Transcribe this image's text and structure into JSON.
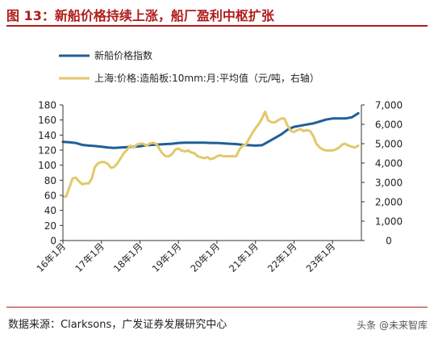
{
  "figure": {
    "title": "图 13：新船价格持续上涨，船厂盈利中枢扩张",
    "source": "数据来源：Clarksons，广发证券发展研究中心",
    "watermark": "头条 @未来智库"
  },
  "chart_data": {
    "type": "line",
    "title": "",
    "xlabel": "",
    "x_tick_labels": [
      "16年1月",
      "17年1月",
      "18年1月",
      "19年1月",
      "20年1月",
      "21年1月",
      "22年1月",
      "23年1月"
    ],
    "x_range": [
      2016.0,
      2023.75
    ],
    "left_axis": {
      "range": [
        0,
        180
      ],
      "ticks": [
        0,
        20,
        40,
        60,
        80,
        100,
        120,
        140,
        160,
        180
      ],
      "tick_labels": [
        "0",
        "20",
        "40",
        "60",
        "80",
        "100",
        "120",
        "140",
        "160",
        "180"
      ]
    },
    "right_axis": {
      "range": [
        0,
        7000
      ],
      "ticks": [
        0,
        1000,
        2000,
        3000,
        4000,
        5000,
        6000,
        7000
      ],
      "tick_labels": [
        "0",
        "1,000",
        "2,000",
        "3,000",
        "4,000",
        "5,000",
        "6,000",
        "7,000"
      ]
    },
    "grid": false,
    "legend_position": "top-left",
    "series": [
      {
        "name": "新船价格指数",
        "axis": "left",
        "color": "#1f5f99",
        "x": [
          2016.0,
          2016.17,
          2016.33,
          2016.5,
          2016.67,
          2016.83,
          2017.0,
          2017.17,
          2017.33,
          2017.5,
          2017.67,
          2017.83,
          2018.0,
          2018.17,
          2018.33,
          2018.5,
          2018.67,
          2018.83,
          2019.0,
          2019.17,
          2019.33,
          2019.5,
          2019.67,
          2019.83,
          2020.0,
          2020.17,
          2020.33,
          2020.5,
          2020.67,
          2020.83,
          2021.0,
          2021.17,
          2021.33,
          2021.5,
          2021.67,
          2021.83,
          2022.0,
          2022.17,
          2022.33,
          2022.5,
          2022.67,
          2022.83,
          2023.0,
          2023.17,
          2023.33,
          2023.5,
          2023.67
        ],
        "y": [
          131,
          130.5,
          129.5,
          127,
          126,
          125.5,
          124.5,
          123.5,
          123,
          123.5,
          124,
          124.5,
          125,
          126.5,
          127,
          127.5,
          128,
          128.5,
          129.5,
          130,
          130,
          130,
          130,
          129.5,
          129.5,
          129,
          128.5,
          128,
          127,
          126.5,
          126,
          126.5,
          131,
          136,
          141,
          147,
          151,
          152.5,
          154,
          155.5,
          158,
          160.5,
          162,
          162,
          162,
          163.5,
          169
        ]
      },
      {
        "name": "上海:价格:造船板:10mm:月:平均值（元/吨，右轴）",
        "axis": "right",
        "color": "#e3c86a",
        "x": [
          2016.0,
          2016.08,
          2016.17,
          2016.25,
          2016.33,
          2016.42,
          2016.5,
          2016.58,
          2016.67,
          2016.75,
          2016.83,
          2016.92,
          2017.0,
          2017.08,
          2017.17,
          2017.25,
          2017.33,
          2017.42,
          2017.5,
          2017.58,
          2017.67,
          2017.75,
          2017.83,
          2017.92,
          2018.0,
          2018.08,
          2018.17,
          2018.25,
          2018.33,
          2018.42,
          2018.5,
          2018.58,
          2018.67,
          2018.75,
          2018.83,
          2018.92,
          2019.0,
          2019.08,
          2019.17,
          2019.25,
          2019.33,
          2019.42,
          2019.5,
          2019.58,
          2019.67,
          2019.75,
          2019.83,
          2019.92,
          2020.0,
          2020.08,
          2020.17,
          2020.25,
          2020.33,
          2020.42,
          2020.5,
          2020.58,
          2020.67,
          2020.75,
          2020.83,
          2020.92,
          2021.0,
          2021.08,
          2021.17,
          2021.25,
          2021.33,
          2021.42,
          2021.5,
          2021.58,
          2021.67,
          2021.75,
          2021.83,
          2021.92,
          2022.0,
          2022.08,
          2022.17,
          2022.25,
          2022.33,
          2022.42,
          2022.5,
          2022.58,
          2022.67,
          2022.75,
          2022.83,
          2022.92,
          2023.0,
          2023.08,
          2023.17,
          2023.25,
          2023.33,
          2023.42,
          2023.5,
          2023.58,
          2023.67
        ],
        "y": [
          2300,
          2250,
          2750,
          3200,
          3250,
          3050,
          2900,
          2950,
          2950,
          3200,
          3800,
          4000,
          4050,
          4050,
          3950,
          3750,
          3800,
          4000,
          4250,
          4500,
          4700,
          4900,
          4800,
          4950,
          5000,
          5000,
          4900,
          5000,
          5050,
          5000,
          4750,
          4500,
          4350,
          4350,
          4450,
          4700,
          4750,
          4650,
          4600,
          4650,
          4550,
          4500,
          4350,
          4300,
          4250,
          4300,
          4200,
          4250,
          4350,
          4400,
          4350,
          4350,
          4350,
          4350,
          4350,
          4700,
          4900,
          4950,
          5250,
          5550,
          5800,
          6000,
          6300,
          6650,
          6200,
          6100,
          6100,
          6200,
          6300,
          6300,
          5950,
          5650,
          5600,
          5700,
          5750,
          5650,
          5700,
          5650,
          5400,
          5000,
          4800,
          4700,
          4650,
          4650,
          4650,
          4700,
          4800,
          4950,
          5000,
          4900,
          4850,
          4800,
          4900
        ]
      }
    ]
  }
}
